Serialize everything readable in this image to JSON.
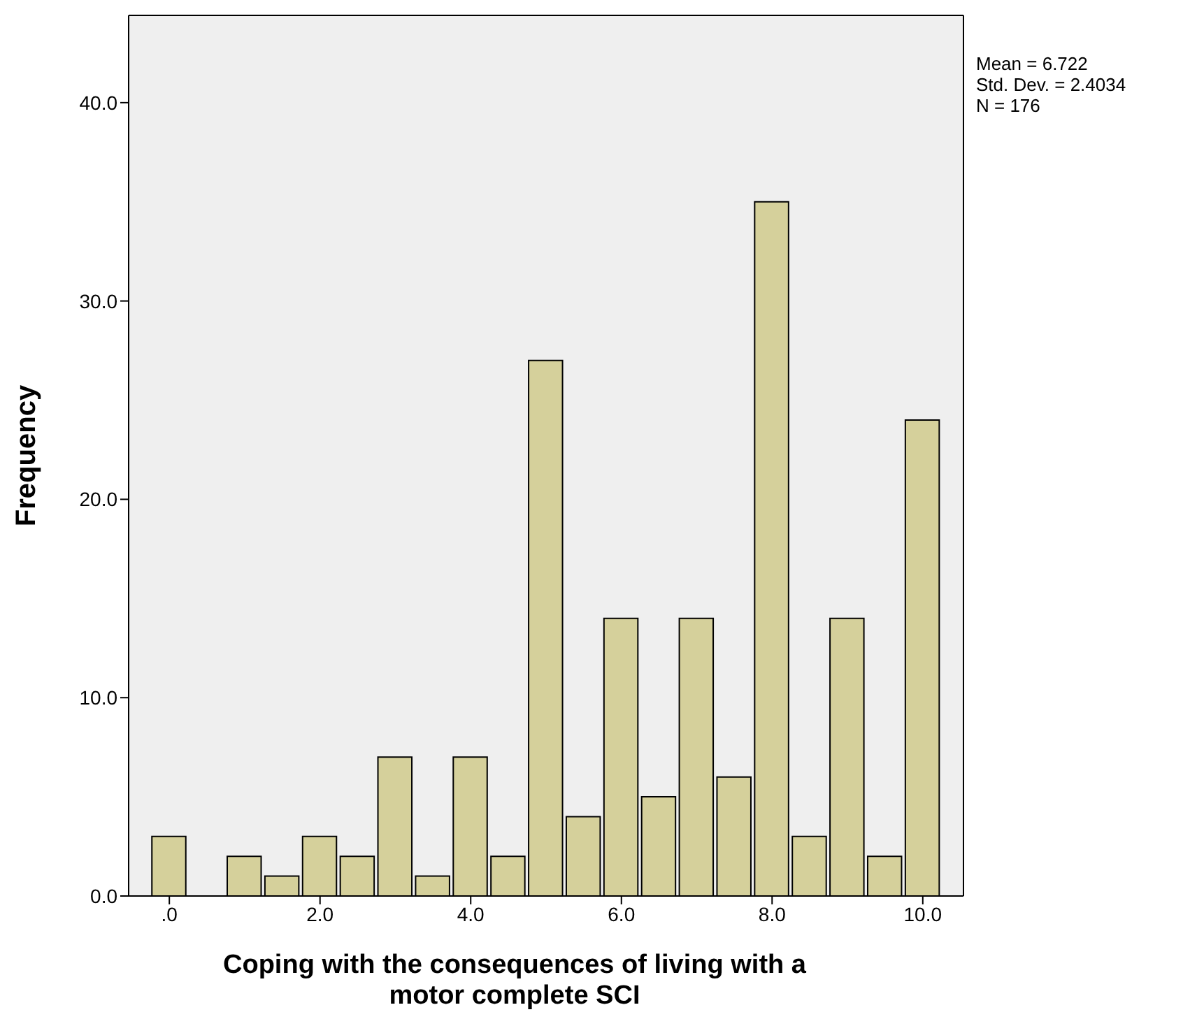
{
  "chart_data": {
    "type": "histogram",
    "xlabel": "Coping with the consequences of living with a motor complete SCI",
    "ylabel": "Frequency",
    "bins": [
      -0.25,
      0.25,
      0.75,
      1.25,
      1.75,
      2.25,
      2.75,
      3.25,
      3.75,
      4.25,
      4.75,
      5.25,
      5.75,
      6.25,
      6.75,
      7.25,
      7.75,
      8.25,
      8.75,
      9.25,
      9.75,
      10.25
    ],
    "values": [
      3,
      0,
      2,
      1,
      3,
      2,
      7,
      1,
      7,
      2,
      27,
      4,
      14,
      5,
      14,
      6,
      35,
      3,
      14,
      2,
      24
    ],
    "color": "#d5d09b",
    "xlim": [
      -0.54,
      10.54
    ],
    "xticks": [
      {
        "value": 0,
        "label": ".0"
      },
      {
        "value": 2,
        "label": "2.0"
      },
      {
        "value": 4,
        "label": "4.0"
      },
      {
        "value": 6,
        "label": "6.0"
      },
      {
        "value": 8,
        "label": "8.0"
      },
      {
        "value": 10,
        "label": "10.0"
      }
    ],
    "ylim": [
      0,
      44.4
    ],
    "yticks": [
      {
        "value": 0,
        "label": "0.0"
      },
      {
        "value": 10,
        "label": "10.0"
      },
      {
        "value": 20,
        "label": "20.0"
      },
      {
        "value": 30,
        "label": "30.0"
      },
      {
        "value": 40,
        "label": "40.0"
      }
    ],
    "annotations": [
      "Mean = 6.722",
      "Std. Dev. = 2.4034",
      "N = 176"
    ],
    "grid": false
  }
}
